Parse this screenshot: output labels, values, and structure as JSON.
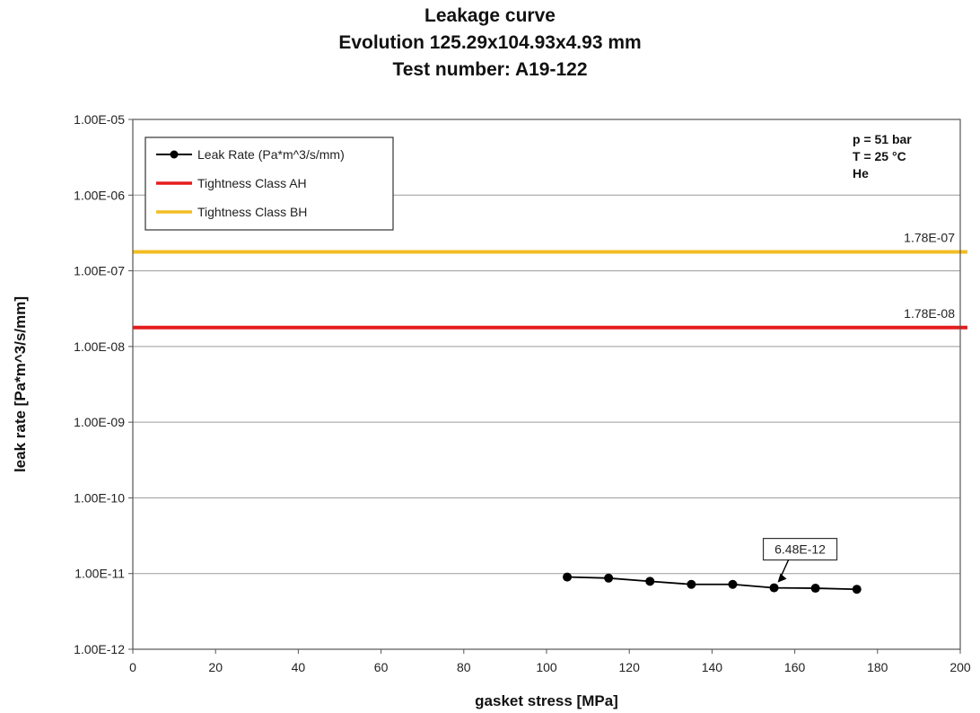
{
  "chart_data": {
    "type": "line",
    "title_lines": [
      "Leakage curve",
      "Evolution 125.29x104.93x4.93 mm",
      "Test number: A19-122"
    ],
    "xlabel": "gasket stress [MPa]",
    "ylabel": "leak rate [Pa*m^3/s/mm]",
    "xlim": [
      0,
      200
    ],
    "x_ticks": [
      "0",
      "20",
      "40",
      "60",
      "80",
      "100",
      "120",
      "140",
      "160",
      "180",
      "200"
    ],
    "ylim": [
      1e-12,
      1e-05
    ],
    "y_scale": "log",
    "y_ticks": [
      "1.00E-12",
      "1.00E-11",
      "1.00E-10",
      "1.00E-09",
      "1.00E-08",
      "1.00E-07",
      "1.00E-06",
      "1.00E-05"
    ],
    "grid": "horizontal",
    "legend_position": "top-left",
    "series": [
      {
        "name": "Leak Rate (Pa*m^3/s/mm)",
        "color": "#000000",
        "marker": "circle",
        "x": [
          105,
          115,
          125,
          135,
          145,
          155,
          165,
          175
        ],
        "y": [
          9e-12,
          8.7e-12,
          7.9e-12,
          7.2e-12,
          7.2e-12,
          6.48e-12,
          6.4e-12,
          6.2e-12
        ]
      }
    ],
    "reference_lines": [
      {
        "name": "Tightness Class AH",
        "color": "#e51c1c",
        "value": 1.78e-08,
        "label": "1.78E-08"
      },
      {
        "name": "Tightness Class BH",
        "color": "#f2bd22",
        "value": 1.78e-07,
        "label": "1.78E-07"
      }
    ],
    "annotations": [
      {
        "text": "6.48E-12",
        "x": 155,
        "y": 6.48e-12
      }
    ],
    "conditions": [
      "p = 51 bar",
      "T = 25 °C",
      "He"
    ]
  }
}
